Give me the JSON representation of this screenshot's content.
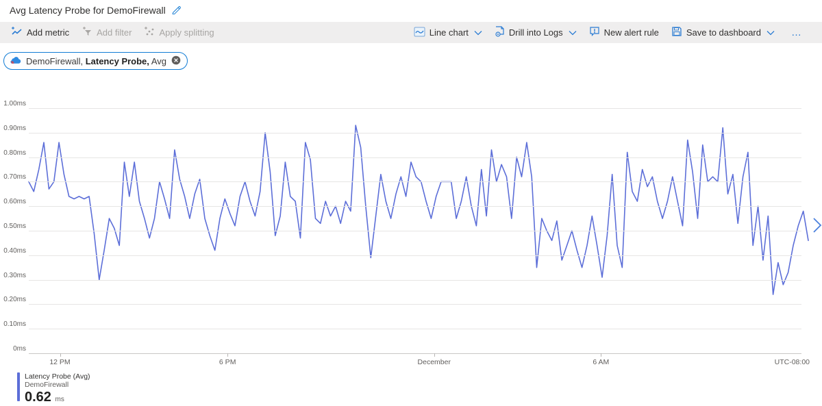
{
  "header": {
    "title": "Avg Latency Probe for DemoFirewall"
  },
  "toolbar": {
    "add_metric": "Add metric",
    "add_filter": "Add filter",
    "apply_splitting": "Apply splitting",
    "line_chart": "Line chart",
    "drill_into_logs": "Drill into Logs",
    "new_alert_rule": "New alert rule",
    "save_to_dashboard": "Save to dashboard",
    "more": "…"
  },
  "metric_pill": {
    "resource": "DemoFirewall,",
    "metric": "Latency Probe,",
    "aggregation": "Avg"
  },
  "legend": {
    "series": "Latency Probe (Avg)",
    "resource": "DemoFirewall",
    "value": "0.62",
    "unit": "ms"
  },
  "colors": {
    "line": "#5c6ed8",
    "accent": "#2b7cd3",
    "disabled": "#a7a5a3",
    "text": "#323130",
    "axis_text": "#605e5c",
    "grid": "#e6e5e4"
  },
  "chart_data": {
    "type": "line",
    "title": "Avg Latency Probe for DemoFirewall",
    "unit": "ms",
    "ylim": [
      0,
      1.0
    ],
    "grid": true,
    "legend_position": "bottom-left",
    "y_ticks": [
      "1.00ms",
      "0.90ms",
      "0.80ms",
      "0.70ms",
      "0.60ms",
      "0.50ms",
      "0.40ms",
      "0.30ms",
      "0.20ms",
      "0.10ms",
      "0ms"
    ],
    "x_ticks": [
      {
        "label": "12 PM",
        "pos": 0.04
      },
      {
        "label": "6 PM",
        "pos": 0.255
      },
      {
        "label": "December",
        "pos": 0.52
      },
      {
        "label": "6 AM",
        "pos": 0.734
      }
    ],
    "timezone": "UTC-08:00",
    "series": [
      {
        "name": "Latency Probe (Avg)",
        "resource": "DemoFirewall",
        "aggregation": "Avg",
        "avg_display": 0.62,
        "values": [
          0.7,
          0.66,
          0.75,
          0.86,
          0.67,
          0.7,
          0.86,
          0.73,
          0.64,
          0.63,
          0.64,
          0.63,
          0.64,
          0.49,
          0.3,
          0.42,
          0.55,
          0.51,
          0.44,
          0.78,
          0.64,
          0.78,
          0.62,
          0.55,
          0.47,
          0.55,
          0.7,
          0.63,
          0.55,
          0.83,
          0.71,
          0.64,
          0.55,
          0.65,
          0.71,
          0.55,
          0.48,
          0.42,
          0.55,
          0.63,
          0.57,
          0.52,
          0.64,
          0.7,
          0.62,
          0.56,
          0.66,
          0.9,
          0.74,
          0.48,
          0.56,
          0.78,
          0.64,
          0.62,
          0.47,
          0.86,
          0.79,
          0.55,
          0.53,
          0.62,
          0.56,
          0.6,
          0.53,
          0.62,
          0.58,
          0.93,
          0.84,
          0.6,
          0.39,
          0.56,
          0.73,
          0.62,
          0.55,
          0.65,
          0.72,
          0.64,
          0.78,
          0.72,
          0.7,
          0.62,
          0.55,
          0.64,
          0.7,
          0.7,
          0.7,
          0.55,
          0.62,
          0.72,
          0.6,
          0.52,
          0.75,
          0.56,
          0.83,
          0.7,
          0.77,
          0.72,
          0.55,
          0.8,
          0.72,
          0.86,
          0.72,
          0.35,
          0.55,
          0.5,
          0.46,
          0.54,
          0.38,
          0.44,
          0.5,
          0.42,
          0.35,
          0.44,
          0.56,
          0.44,
          0.31,
          0.48,
          0.73,
          0.44,
          0.35,
          0.82,
          0.66,
          0.62,
          0.75,
          0.68,
          0.72,
          0.62,
          0.55,
          0.62,
          0.72,
          0.62,
          0.52,
          0.87,
          0.74,
          0.55,
          0.85,
          0.7,
          0.72,
          0.7,
          0.92,
          0.65,
          0.73,
          0.53,
          0.72,
          0.82,
          0.44,
          0.6,
          0.38,
          0.56,
          0.24,
          0.37,
          0.28,
          0.33,
          0.44,
          0.52,
          0.58,
          0.46
        ]
      }
    ]
  }
}
